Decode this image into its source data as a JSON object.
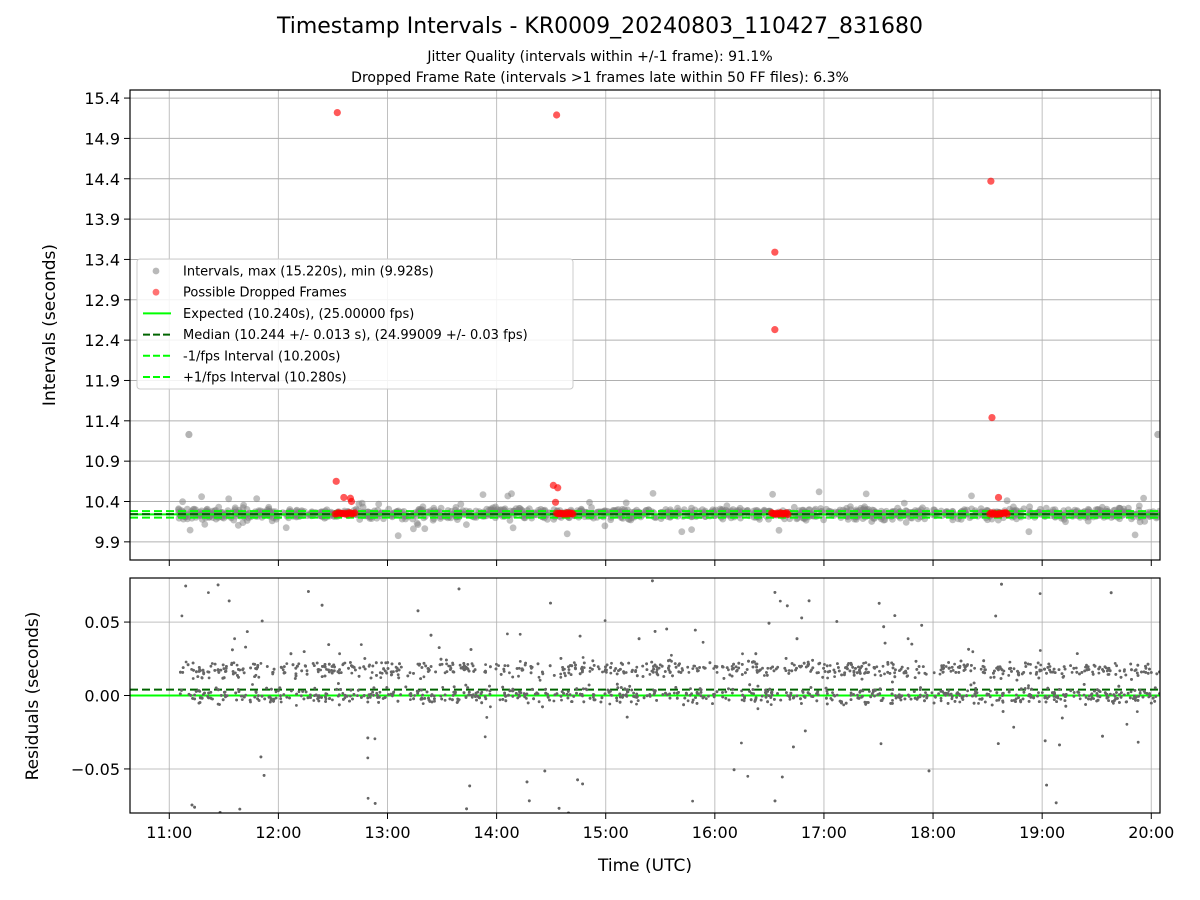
{
  "title": "Timestamp Intervals - KR0009_20240803_110427_831680",
  "subtitle_1": "Jitter Quality (intervals within +/-1 frame): 91.1%",
  "subtitle_2": "Dropped Frame Rate (intervals >1 frames late within 50 FF files): 6.3%",
  "colors": {
    "intervals": "#808080",
    "dropped": "#ff0000",
    "expected": "#00ff00",
    "median": "#006400",
    "band": "#00ff00",
    "residual_points": "#666666",
    "grid": "#b0b0b0"
  },
  "chart_data": [
    {
      "type": "scatter",
      "name": "intervals-panel",
      "ylabel": "Intervals (seconds)",
      "xlabel": "",
      "x_unit": "hours UTC",
      "xlim": [
        10.64,
        20.08
      ],
      "ylim": [
        9.675,
        15.5
      ],
      "yticks": [
        9.9,
        10.4,
        10.9,
        11.4,
        11.9,
        12.4,
        12.9,
        13.4,
        13.9,
        14.4,
        14.9,
        15.4
      ],
      "grid": true,
      "legend_position": "upper left",
      "legend": [
        {
          "label": "Intervals, max (15.220s), min (9.928s)",
          "kind": "point",
          "color": "#808080"
        },
        {
          "label": "Possible Dropped Frames",
          "kind": "point",
          "color": "#ff0000"
        },
        {
          "label": "Expected (10.240s), (25.00000 fps)",
          "kind": "line",
          "color": "#00ff00"
        },
        {
          "label": "Median (10.244 +/- 0.013 s), (24.99009 +/- 0.03 fps)",
          "kind": "dashed",
          "color": "#006400"
        },
        {
          "label": "-1/fps Interval (10.200s)",
          "kind": "dashed",
          "color": "#00ff00"
        },
        {
          "label": "+1/fps Interval (10.280s)",
          "kind": "dashed",
          "color": "#00ff00"
        }
      ],
      "reference_lines": {
        "expected": 10.24,
        "median": 10.244,
        "minus_1_fps": 10.2,
        "plus_1_fps": 10.28
      },
      "sample_range": {
        "x_start": 11.08,
        "x_end": 20.08,
        "y_min": 9.928,
        "y_max": 15.22
      },
      "dropped_points": [
        {
          "x": 12.54,
          "y": 15.22
        },
        {
          "x": 14.55,
          "y": 15.19
        },
        {
          "x": 16.55,
          "y": 13.49
        },
        {
          "x": 16.55,
          "y": 12.53
        },
        {
          "x": 18.53,
          "y": 14.37
        },
        {
          "x": 18.54,
          "y": 11.44
        },
        {
          "x": 12.53,
          "y": 10.65
        },
        {
          "x": 12.6,
          "y": 10.45
        },
        {
          "x": 12.66,
          "y": 10.44
        },
        {
          "x": 12.67,
          "y": 10.4
        },
        {
          "x": 14.52,
          "y": 10.6
        },
        {
          "x": 14.56,
          "y": 10.57
        },
        {
          "x": 14.54,
          "y": 10.39
        },
        {
          "x": 18.6,
          "y": 10.45
        }
      ],
      "dropped_clusters": [
        {
          "x_start": 12.52,
          "x_end": 12.7,
          "y": 10.25
        },
        {
          "x_start": 14.55,
          "x_end": 14.7,
          "y": 10.25
        },
        {
          "x_start": 16.52,
          "x_end": 16.67,
          "y": 10.25
        },
        {
          "x_start": 18.52,
          "x_end": 18.68,
          "y": 10.25
        }
      ],
      "outlier_intervals": [
        {
          "x": 11.18,
          "y": 11.23
        },
        {
          "x": 20.06,
          "y": 11.23
        }
      ]
    },
    {
      "type": "scatter",
      "name": "residuals-panel",
      "ylabel": "Residuals (seconds)",
      "xlabel": "Time (UTC)",
      "xlim": [
        10.64,
        20.08
      ],
      "ylim": [
        -0.08,
        0.08
      ],
      "yticks": [
        0.05,
        0.0,
        -0.05
      ],
      "ytick_labels": [
        "0.05",
        "0.00",
        "−0.05"
      ],
      "xticks": [
        11,
        12,
        13,
        14,
        15,
        16,
        17,
        18,
        19,
        20
      ],
      "xtick_labels": [
        "11:00",
        "12:00",
        "13:00",
        "14:00",
        "15:00",
        "16:00",
        "17:00",
        "18:00",
        "19:00",
        "20:00"
      ],
      "grid": true,
      "reference_lines": {
        "zero": 0.0,
        "median_offset": 0.004
      },
      "residual_band": {
        "x_start": 11.1,
        "x_end": 20.08,
        "center": 0.01,
        "spread": 0.02
      }
    }
  ]
}
